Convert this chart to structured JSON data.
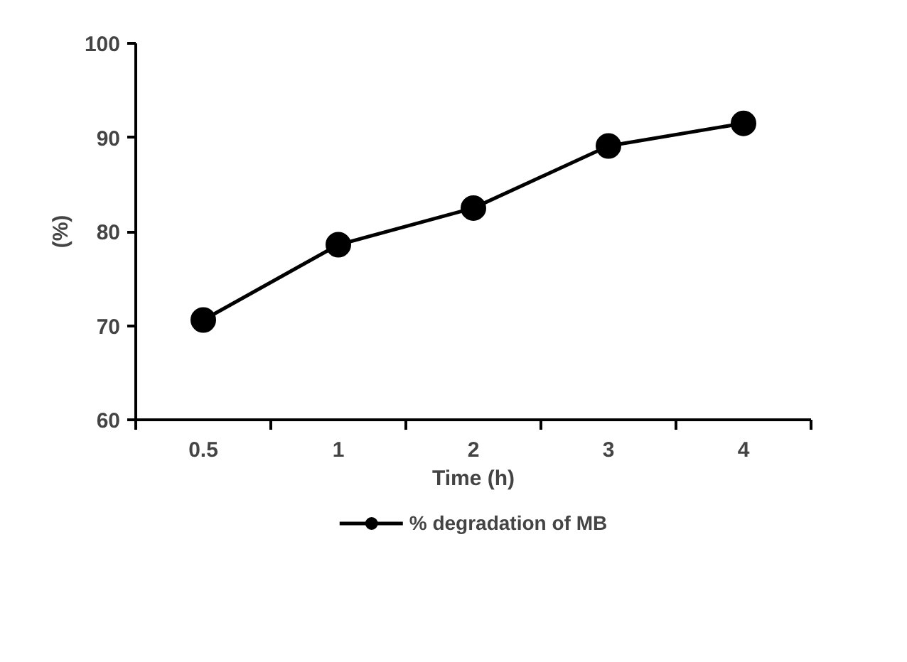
{
  "chart_data": {
    "type": "line",
    "xlabel": "Time (h)",
    "ylabel": "(%)",
    "categories": [
      "0.5",
      "1",
      "2",
      "3",
      "4"
    ],
    "series": [
      {
        "name": "% degradation of MB",
        "color": "#000000",
        "values": [
          70.6,
          78.6,
          82.5,
          89.1,
          91.5
        ]
      }
    ],
    "ylim": [
      60,
      100
    ],
    "yticks": [
      60,
      70,
      80,
      90,
      100
    ],
    "marker": "circle",
    "line_style": "solid",
    "grid": false,
    "legend": "bottom"
  }
}
